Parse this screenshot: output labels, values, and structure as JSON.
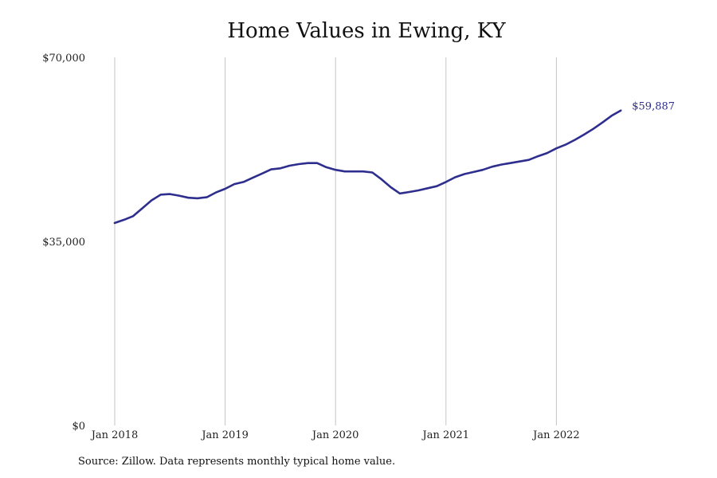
{
  "chart_data": {
    "type": "line",
    "title": "Home Values in Ewing, KY",
    "source": "Source: Zillow. Data represents monthly typical home value.",
    "xlabel": "",
    "ylabel": "",
    "ylim": [
      0,
      70000
    ],
    "y_ticks": [
      {
        "value": 0,
        "label": "$0"
      },
      {
        "value": 35000,
        "label": "$35,000"
      },
      {
        "value": 70000,
        "label": "$70,000"
      }
    ],
    "x_ticks": [
      {
        "date": "2018-01",
        "label": "Jan 2018"
      },
      {
        "date": "2019-01",
        "label": "Jan 2019"
      },
      {
        "date": "2020-01",
        "label": "Jan 2020"
      },
      {
        "date": "2021-01",
        "label": "Jan 2021"
      },
      {
        "date": "2022-01",
        "label": "Jan 2022"
      }
    ],
    "grid": "vertical",
    "line_color": "#2e2e8f",
    "end_label": "$59,887",
    "series": [
      {
        "x": [
          "2018-01",
          "2018-02",
          "2018-03",
          "2018-04",
          "2018-05",
          "2018-06",
          "2018-07",
          "2018-08",
          "2018-09",
          "2018-10",
          "2018-11",
          "2018-12",
          "2019-01",
          "2019-02",
          "2019-03",
          "2019-04",
          "2019-05",
          "2019-06",
          "2019-07",
          "2019-08",
          "2019-09",
          "2019-10",
          "2019-11",
          "2019-12",
          "2020-01",
          "2020-02",
          "2020-03",
          "2020-04",
          "2020-05",
          "2020-06",
          "2020-07",
          "2020-08",
          "2020-09",
          "2020-10",
          "2020-11",
          "2020-12",
          "2021-01",
          "2021-02",
          "2021-03",
          "2021-04",
          "2021-05",
          "2021-06",
          "2021-07",
          "2021-08",
          "2021-09",
          "2021-10",
          "2021-11",
          "2021-12",
          "2022-01",
          "2022-02",
          "2022-03",
          "2022-04",
          "2022-05",
          "2022-06",
          "2022-07",
          "2022-08"
        ],
        "values": [
          38500,
          39100,
          39800,
          41300,
          42800,
          43900,
          44000,
          43700,
          43300,
          43200,
          43400,
          44300,
          45000,
          45900,
          46300,
          47100,
          47900,
          48700,
          48900,
          49400,
          49700,
          49900,
          49900,
          49100,
          48600,
          48300,
          48300,
          48300,
          48100,
          46800,
          45300,
          44100,
          44400,
          44700,
          45100,
          45500,
          46300,
          47200,
          47800,
          48200,
          48600,
          49200,
          49600,
          49900,
          50200,
          50500,
          51200,
          51800,
          52700,
          53400,
          54300,
          55300,
          56400,
          57600,
          58900,
          59887
        ]
      }
    ]
  }
}
